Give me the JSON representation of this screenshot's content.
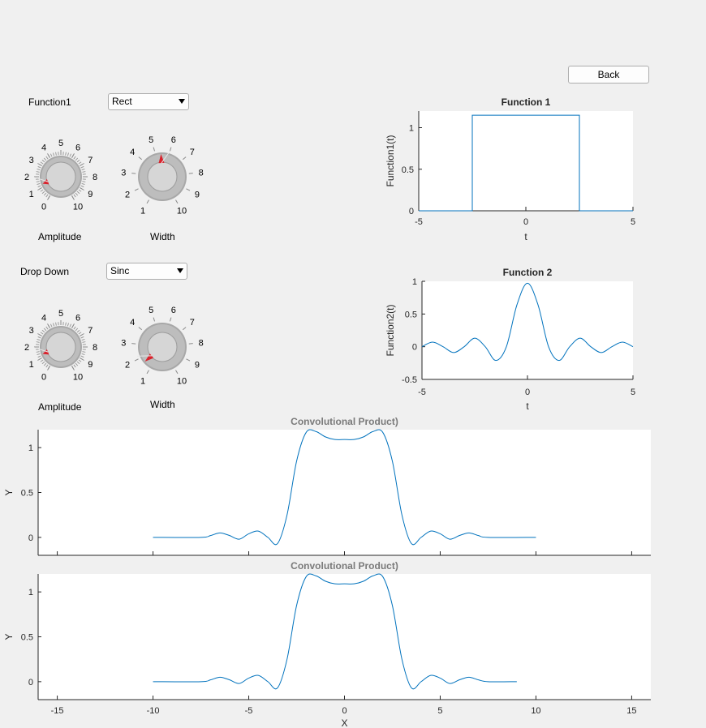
{
  "back_button": "Back",
  "panel1": {
    "label": "Function1",
    "dropdown_value": "Rect",
    "knob_amplitude": {
      "label": "Amplitude",
      "ticks": [
        "0",
        "1",
        "2",
        "3",
        "4",
        "5",
        "6",
        "7",
        "8",
        "9",
        "10"
      ],
      "value": 1.3
    },
    "knob_width": {
      "label": "Width",
      "ticks": [
        "1",
        "2",
        "3",
        "4",
        "5",
        "6",
        "7",
        "8",
        "9",
        "10"
      ],
      "value": 5.4
    }
  },
  "panel2": {
    "label": "Drop Down",
    "dropdown_value": "Sinc",
    "knob_amplitude": {
      "label": "Amplitude",
      "ticks": [
        "0",
        "1",
        "2",
        "3",
        "4",
        "5",
        "6",
        "7",
        "8",
        "9",
        "10"
      ],
      "value": 1.3
    },
    "knob_width": {
      "label": "Width",
      "ticks": [
        "1",
        "2",
        "3",
        "4",
        "5",
        "6",
        "7",
        "8",
        "9",
        "10"
      ],
      "value": 1.6
    }
  },
  "accent_color": "#0072bd",
  "knob_pointer_color": "#d9232d",
  "chart_data": [
    {
      "type": "line",
      "title": "Function 1",
      "xlabel": "t",
      "ylabel": "Function1(t)",
      "xlim": [
        -5,
        5
      ],
      "ylim": [
        0,
        1.2
      ],
      "xticks": [
        "-5",
        "0",
        "5"
      ],
      "yticks": [
        "0",
        "0.5",
        "1"
      ],
      "x": [
        -5,
        -2.5,
        -2.5,
        2.5,
        2.5,
        5
      ],
      "y": [
        0,
        0,
        1.15,
        1.15,
        0,
        0
      ]
    },
    {
      "type": "line",
      "title": "Function 2",
      "xlabel": "t",
      "ylabel": "Function2(t)",
      "xlim": [
        -5,
        5
      ],
      "ylim": [
        -0.5,
        1
      ],
      "xticks": [
        "-5",
        "0",
        "5"
      ],
      "yticks": [
        "-0.5",
        "0",
        "0.5",
        "1"
      ],
      "x": [
        -5.0,
        -4.5,
        -4.0,
        -3.5,
        -3.0,
        -2.5,
        -2.0,
        -1.5,
        -1.0,
        -0.5,
        0.0,
        0.5,
        1.0,
        1.5,
        2.0,
        2.5,
        3.0,
        3.5,
        4.0,
        4.5,
        5.0
      ],
      "y": [
        0.0,
        0.07,
        0.0,
        -0.09,
        0.0,
        0.13,
        0.0,
        -0.21,
        0.0,
        0.64,
        0.97,
        0.64,
        0.0,
        -0.21,
        0.0,
        0.13,
        0.0,
        -0.09,
        0.0,
        0.07,
        0.0
      ]
    },
    {
      "type": "line",
      "title": "Convolutional Product)",
      "xlabel": "",
      "ylabel": "Y",
      "xlim": [
        -16,
        16
      ],
      "ylim": [
        -0.2,
        1.2
      ],
      "xticks": [],
      "yticks": [
        "0",
        "0.5",
        "1"
      ],
      "x": [
        -10,
        -7.5,
        -7.0,
        -6.5,
        -6.0,
        -5.5,
        -5.0,
        -4.5,
        -4.0,
        -3.5,
        -3.0,
        -2.5,
        -2.0,
        -1.5,
        -1.0,
        -0.5,
        0.0,
        0.5,
        1.0,
        1.5,
        2.0,
        2.5,
        3.0,
        3.5,
        4.0,
        4.5,
        5.0,
        5.5,
        6.0,
        6.5,
        7.0,
        7.5,
        10
      ],
      "y": [
        0,
        0,
        0.02,
        0.05,
        0.02,
        -0.02,
        0.04,
        0.07,
        0.0,
        -0.07,
        0.25,
        0.85,
        1.17,
        1.18,
        1.12,
        1.09,
        1.09,
        1.09,
        1.12,
        1.18,
        1.17,
        0.85,
        0.25,
        -0.07,
        0.0,
        0.07,
        0.04,
        -0.02,
        0.02,
        0.05,
        0.02,
        0,
        0
      ]
    },
    {
      "type": "line",
      "title": "Convolutional Product)",
      "xlabel": "X",
      "ylabel": "Y",
      "xlim": [
        -16,
        16
      ],
      "ylim": [
        -0.2,
        1.2
      ],
      "xticks": [
        "-15",
        "-10",
        "-5",
        "0",
        "5",
        "10",
        "15"
      ],
      "yticks": [
        "0",
        "0.5",
        "1"
      ],
      "x": [
        -10,
        -7.5,
        -7.0,
        -6.5,
        -6.0,
        -5.5,
        -5.0,
        -4.5,
        -4.0,
        -3.5,
        -3.0,
        -2.5,
        -2.0,
        -1.5,
        -1.0,
        -0.5,
        0.0,
        0.5,
        1.0,
        1.5,
        2.0,
        2.5,
        3.0,
        3.5,
        4.0,
        4.5,
        5.0,
        5.5,
        6.0,
        6.5,
        7.0,
        7.5,
        9
      ],
      "y": [
        0,
        0,
        0.02,
        0.05,
        0.02,
        -0.02,
        0.04,
        0.07,
        0.0,
        -0.07,
        0.25,
        0.85,
        1.17,
        1.18,
        1.12,
        1.09,
        1.09,
        1.09,
        1.12,
        1.18,
        1.17,
        0.85,
        0.25,
        -0.07,
        0.0,
        0.07,
        0.04,
        -0.02,
        0.02,
        0.05,
        0.02,
        0,
        0
      ]
    }
  ]
}
